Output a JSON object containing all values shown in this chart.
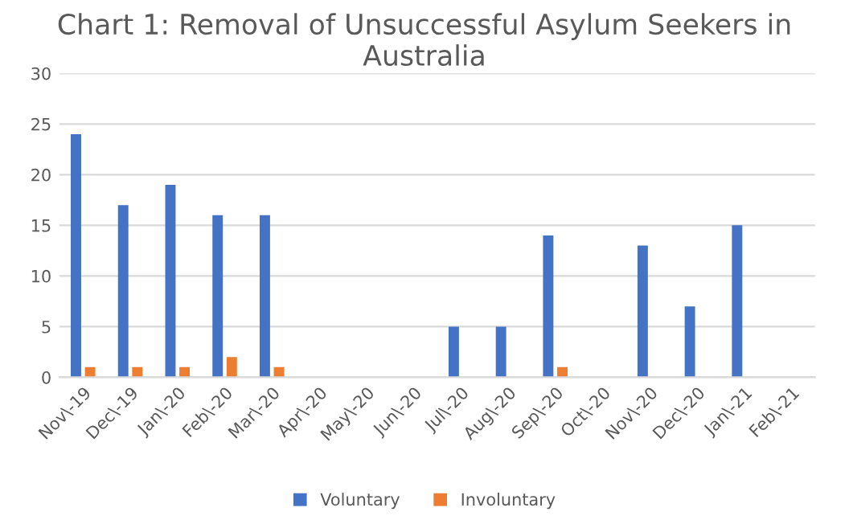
{
  "chart_data": {
    "type": "bar",
    "title": "Chart 1: Removal of Unsuccessful Asylum Seekers in Australia",
    "categories": [
      "Nov\\-19",
      "Dec\\-19",
      "Jan\\-20",
      "Feb\\-20",
      "Mar\\-20",
      "Apr\\-20",
      "May\\-20",
      "Jun\\-20",
      "Jul\\-20",
      "Aug\\-20",
      "Sep\\-20",
      "Oct\\-20",
      "Nov\\-20",
      "Dec\\-20",
      "Jan\\-21",
      "Feb\\-21"
    ],
    "series": [
      {
        "name": "Voluntary",
        "color": "#4472c4",
        "values": [
          24,
          17,
          19,
          16,
          16,
          0,
          0,
          0,
          5,
          5,
          14,
          0,
          13,
          7,
          15,
          0
        ]
      },
      {
        "name": "Involuntary",
        "color": "#ed7d31",
        "values": [
          1,
          1,
          1,
          2,
          1,
          0,
          0,
          0,
          0,
          0,
          1,
          0,
          0,
          0,
          0,
          0
        ]
      }
    ],
    "ylim": [
      0,
      30
    ],
    "yticks": [
      0,
      5,
      10,
      15,
      20,
      25,
      30
    ],
    "grid": "y",
    "legend": "bottom"
  }
}
